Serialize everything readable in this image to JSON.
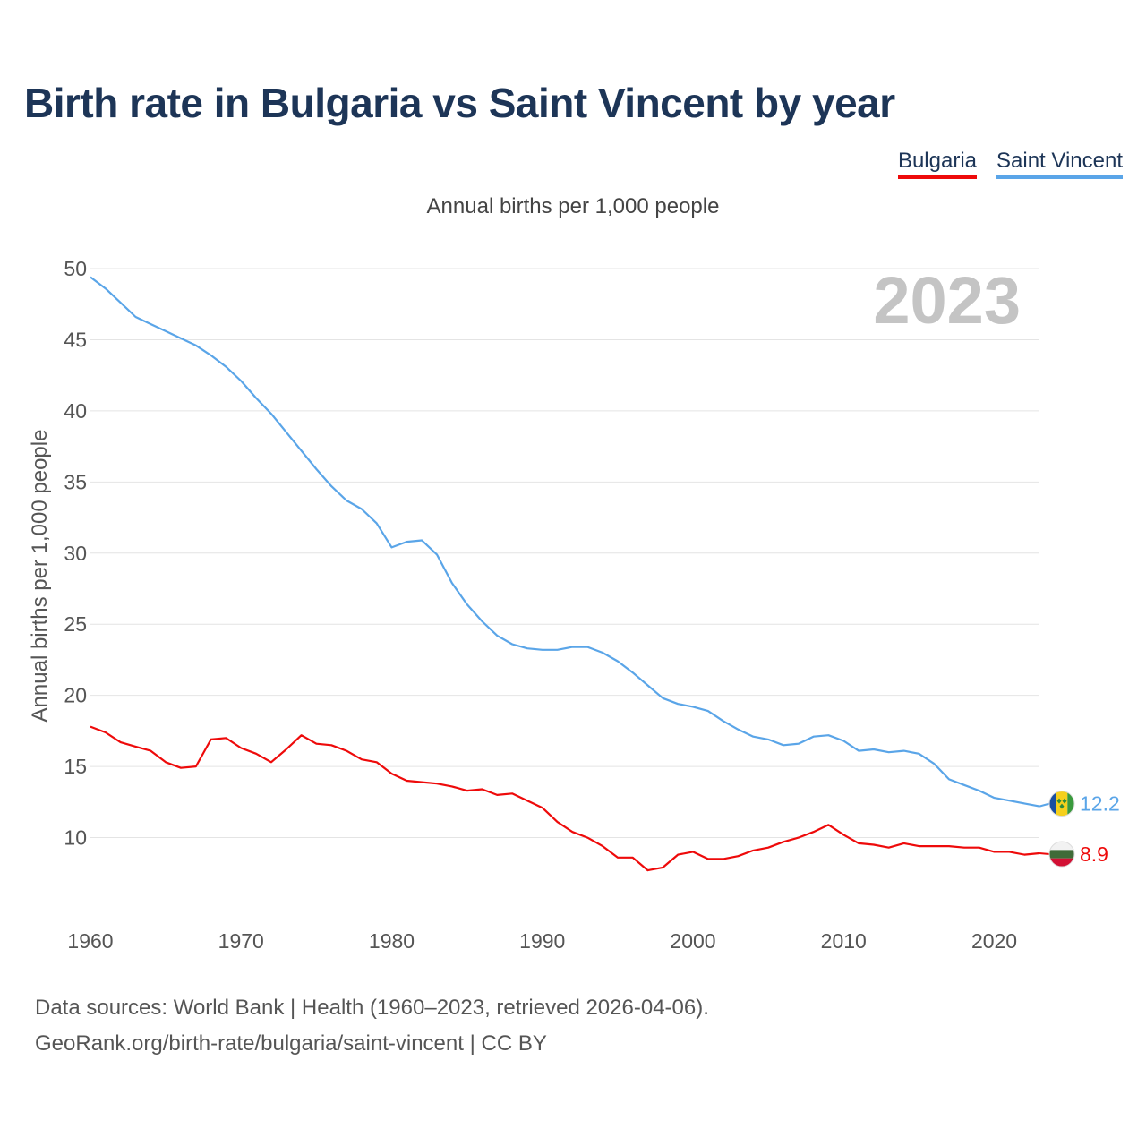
{
  "title": "Birth rate in Bulgaria vs Saint Vincent by year",
  "legend": [
    {
      "label": "Bulgaria",
      "color": "#ee0a0a"
    },
    {
      "label": "Saint Vincent",
      "color": "#5aa5e8"
    }
  ],
  "subtitle": "Annual births per 1,000 people",
  "year_watermark": "2023",
  "footer": {
    "line1": "Data sources: World Bank | Health (1960–2023, retrieved 2026-04-06).",
    "line2": "GeoRank.org/birth-rate/bulgaria/saint-vincent | CC BY"
  },
  "chart_data": {
    "type": "line",
    "title": "Birth rate in Bulgaria vs Saint Vincent by year",
    "ylabel": "Annual births per 1,000 people",
    "xlabel": "",
    "xlim": [
      1960,
      2023
    ],
    "ylim": [
      5,
      50
    ],
    "x_ticks": [
      1960,
      1970,
      1980,
      1990,
      2000,
      2010,
      2020
    ],
    "y_ticks": [
      10,
      15,
      20,
      25,
      30,
      35,
      40,
      45,
      50
    ],
    "grid": true,
    "x": [
      1960,
      1961,
      1962,
      1963,
      1964,
      1965,
      1966,
      1967,
      1968,
      1969,
      1970,
      1971,
      1972,
      1973,
      1974,
      1975,
      1976,
      1977,
      1978,
      1979,
      1980,
      1981,
      1982,
      1983,
      1984,
      1985,
      1986,
      1987,
      1988,
      1989,
      1990,
      1991,
      1992,
      1993,
      1994,
      1995,
      1996,
      1997,
      1998,
      1999,
      2000,
      2001,
      2002,
      2003,
      2004,
      2005,
      2006,
      2007,
      2008,
      2009,
      2010,
      2011,
      2012,
      2013,
      2014,
      2015,
      2016,
      2017,
      2018,
      2019,
      2020,
      2021,
      2022,
      2023
    ],
    "series": [
      {
        "name": "Bulgaria",
        "color": "#ee0a0a",
        "end_label": "8.9",
        "values": [
          17.8,
          17.4,
          16.7,
          16.4,
          16.1,
          15.3,
          14.9,
          15.0,
          16.9,
          17.0,
          16.3,
          15.9,
          15.3,
          16.2,
          17.2,
          16.6,
          16.5,
          16.1,
          15.5,
          15.3,
          14.5,
          14.0,
          13.9,
          13.8,
          13.6,
          13.3,
          13.4,
          13.0,
          13.1,
          12.6,
          12.1,
          11.1,
          10.4,
          10.0,
          9.4,
          8.6,
          8.6,
          7.7,
          7.9,
          8.8,
          9.0,
          8.5,
          8.5,
          8.7,
          9.1,
          9.3,
          9.7,
          10.0,
          10.4,
          10.9,
          10.2,
          9.6,
          9.5,
          9.3,
          9.6,
          9.4,
          9.4,
          9.4,
          9.3,
          9.3,
          9.0,
          9.0,
          8.8,
          8.9
        ]
      },
      {
        "name": "Saint Vincent",
        "color": "#5aa5e8",
        "end_label": "12.2",
        "values": [
          49.4,
          48.6,
          47.6,
          46.6,
          46.1,
          45.6,
          45.1,
          44.6,
          43.9,
          43.1,
          42.1,
          40.9,
          39.8,
          38.5,
          37.2,
          35.9,
          34.7,
          33.7,
          33.1,
          32.1,
          30.4,
          30.8,
          30.9,
          29.9,
          27.9,
          26.4,
          25.2,
          24.2,
          23.6,
          23.3,
          23.2,
          23.2,
          23.4,
          23.4,
          23.0,
          22.4,
          21.6,
          20.7,
          19.8,
          19.4,
          19.2,
          18.9,
          18.2,
          17.6,
          17.1,
          16.9,
          16.5,
          16.6,
          17.1,
          17.2,
          16.8,
          16.1,
          16.2,
          16.0,
          16.1,
          15.9,
          15.2,
          14.1,
          13.7,
          13.3,
          12.8,
          12.6,
          12.4,
          12.2
        ]
      }
    ]
  }
}
